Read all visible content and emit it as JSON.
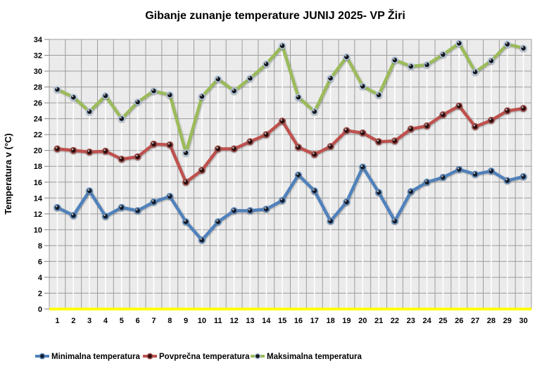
{
  "title": "Gibanje zunanje temperature JUNIJ 2025- VP Žiri",
  "y_axis_title": "Temperatura v (°C)",
  "colors": {
    "plot_background": "#EBEBEB",
    "gridline": "#9C9C9C",
    "tick": "#7F7F7F",
    "drop_line": "#FFFFFF",
    "x_axis_line": "#FFFF00",
    "text": "#000000"
  },
  "chart_data": {
    "type": "line",
    "title": "Gibanje zunanje temperature JUNIJ 2025- VP Žiri",
    "xlabel": "",
    "ylabel": "Temperatura v (°C)",
    "x": [
      1,
      2,
      3,
      4,
      5,
      6,
      7,
      8,
      9,
      10,
      11,
      12,
      13,
      14,
      15,
      16,
      17,
      18,
      19,
      20,
      21,
      22,
      23,
      24,
      25,
      26,
      27,
      28,
      29,
      30
    ],
    "ylim": [
      0,
      34
    ],
    "ytick_step": 2,
    "grid": true,
    "drop_lines": true,
    "legend_position": "bottom",
    "series": [
      {
        "name": "Minimalna temperatura",
        "color": "#4F81BD",
        "marker_halo": "#5F88B8",
        "marker_core": "#121C2C",
        "values": [
          12.8,
          11.8,
          14.9,
          11.7,
          12.8,
          12.4,
          13.5,
          14.2,
          11.0,
          8.7,
          11.0,
          12.4,
          12.4,
          12.6,
          13.7,
          16.9,
          14.9,
          11.1,
          13.5,
          17.9,
          14.7,
          11.1,
          14.8,
          16.0,
          16.6,
          17.6,
          17.0,
          17.4,
          16.2,
          16.7
        ]
      },
      {
        "name": "Povprečna temperatura",
        "color": "#C0504D",
        "marker_halo": "#A0504D",
        "marker_core": "#2E0D0C",
        "values": [
          20.2,
          20.0,
          19.8,
          19.9,
          18.9,
          19.2,
          20.8,
          20.7,
          16.0,
          17.5,
          20.2,
          20.2,
          21.1,
          22.0,
          23.7,
          20.4,
          19.5,
          20.5,
          22.5,
          22.2,
          21.1,
          21.2,
          22.7,
          23.1,
          24.5,
          25.6,
          23.0,
          23.8,
          25.0,
          25.3
        ]
      },
      {
        "name": "Maksimalna temperatura",
        "color": "#9BBB59",
        "marker_halo": "#B3C6DD",
        "marker_core": "#15171C",
        "values": [
          27.7,
          26.7,
          24.9,
          26.9,
          24.0,
          26.1,
          27.5,
          27.0,
          19.7,
          26.8,
          29.0,
          27.5,
          29.1,
          30.9,
          33.2,
          26.7,
          24.9,
          29.1,
          31.8,
          28.1,
          27.0,
          31.4,
          30.6,
          30.8,
          32.1,
          33.5,
          29.9,
          31.3,
          33.4,
          32.9
        ]
      }
    ]
  }
}
